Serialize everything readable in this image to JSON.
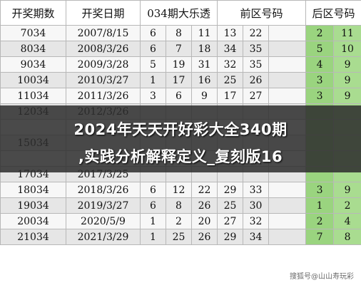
{
  "table": {
    "headers": [
      "开奖期数",
      "开奖日期",
      "034期大乐透",
      "前区号码",
      "后区号码"
    ],
    "rows": [
      {
        "issue": "7034",
        "date": "2007/8/15",
        "front": [
          "6",
          "8",
          "11",
          "13",
          "22"
        ],
        "back": [
          "2",
          "11"
        ]
      },
      {
        "issue": "8034",
        "date": "2008/3/26",
        "front": [
          "6",
          "7",
          "18",
          "34",
          "35"
        ],
        "back": [
          "5",
          "10"
        ]
      },
      {
        "issue": "9034",
        "date": "2009/3/28",
        "front": [
          "5",
          "19",
          "31",
          "32",
          "35"
        ],
        "back": [
          "4",
          "9"
        ]
      },
      {
        "issue": "10034",
        "date": "2010/3/27",
        "front": [
          "1",
          "17",
          "16",
          "25",
          "26"
        ],
        "back": [
          "3",
          "9"
        ]
      },
      {
        "issue": "11034",
        "date": "2011/3/26",
        "front": [
          "3",
          "6",
          "9",
          "17",
          "27"
        ],
        "back": [
          "3",
          "9"
        ]
      },
      {
        "issue": "12034",
        "date": "2012/3/26",
        "front": [
          "",
          "",
          "",
          "",
          "",
          "",
          ""
        ],
        "back": [
          "",
          ""
        ]
      },
      {
        "issue": "",
        "date": "",
        "front": [
          "",
          "",
          "",
          "",
          "",
          "",
          ""
        ],
        "back": [
          "",
          ""
        ]
      },
      {
        "issue": "15034",
        "date": "",
        "front": [
          "",
          "",
          "",
          "",
          "",
          "",
          ""
        ],
        "back": [
          "",
          ""
        ]
      },
      {
        "issue": "",
        "date": "",
        "front": [
          "",
          "",
          "",
          "",
          "",
          "",
          ""
        ],
        "back": [
          "",
          ""
        ]
      },
      {
        "issue": "17034",
        "date": "2017/3/25",
        "front": [
          "",
          "",
          "",
          "",
          "",
          "",
          ""
        ],
        "back": [
          "",
          ""
        ]
      },
      {
        "issue": "18034",
        "date": "2018/3/26",
        "front": [
          "6",
          "12",
          "22",
          "29",
          "33"
        ],
        "back": [
          "3",
          "9"
        ]
      },
      {
        "issue": "19034",
        "date": "2019/3/27",
        "front": [
          "6",
          "8",
          "26",
          "25",
          "30"
        ],
        "back": [
          "1",
          "2"
        ]
      },
      {
        "issue": "20034",
        "date": "2020/5/9",
        "front": [
          "1",
          "2",
          "20",
          "27",
          "32"
        ],
        "back": [
          "2",
          "4"
        ]
      },
      {
        "issue": "21034",
        "date": "2021/3/29",
        "front": [
          "1",
          "25",
          "26",
          "29",
          "34"
        ],
        "back": [
          "7",
          "8"
        ]
      }
    ]
  },
  "overlay": {
    "line1": "2024年天天开好彩大全340期",
    "line2": ",实践分析解释定义_复刻版16"
  },
  "watermark": "搜狐号@山山寿玩彩",
  "colors": {
    "back_zone": "#9ad47f",
    "overlay": "#2d2d2d"
  }
}
